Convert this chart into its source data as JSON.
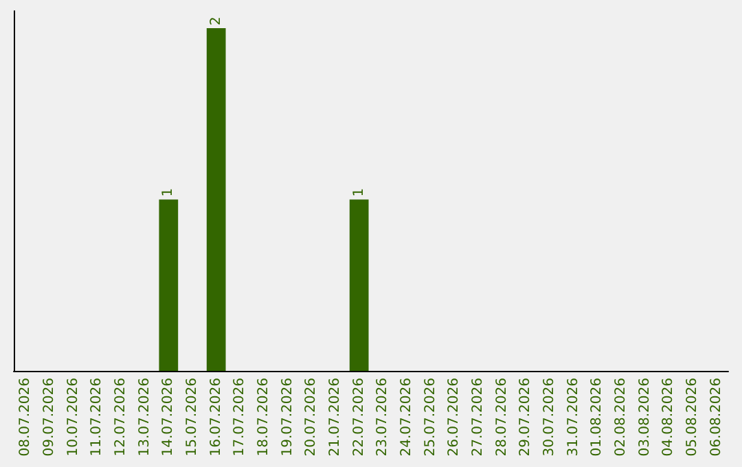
{
  "chart_data": {
    "type": "bar",
    "categories": [
      "08.07.2026",
      "09.07.2026",
      "10.07.2026",
      "11.07.2026",
      "12.07.2026",
      "13.07.2026",
      "14.07.2026",
      "15.07.2026",
      "16.07.2026",
      "17.07.2026",
      "18.07.2026",
      "19.07.2026",
      "20.07.2026",
      "21.07.2026",
      "22.07.2026",
      "23.07.2026",
      "24.07.2026",
      "25.07.2026",
      "26.07.2026",
      "27.07.2026",
      "28.07.2026",
      "29.07.2026",
      "30.07.2026",
      "31.07.2026",
      "01.08.2026",
      "02.08.2026",
      "03.08.2026",
      "04.08.2026",
      "05.08.2026",
      "06.08.2026"
    ],
    "values": [
      0,
      0,
      0,
      0,
      0,
      0,
      1,
      0,
      2,
      0,
      0,
      0,
      0,
      0,
      1,
      0,
      0,
      0,
      0,
      0,
      0,
      0,
      0,
      0,
      0,
      0,
      0,
      0,
      0,
      0
    ],
    "color": "#336600",
    "value_labels": [
      null,
      null,
      null,
      null,
      null,
      null,
      "1",
      null,
      "2",
      null,
      null,
      null,
      null,
      null,
      "1",
      null,
      null,
      null,
      null,
      null,
      null,
      null,
      null,
      null,
      null,
      null,
      null,
      null,
      null,
      null
    ],
    "tick_labels": "x",
    "grid": false
  }
}
